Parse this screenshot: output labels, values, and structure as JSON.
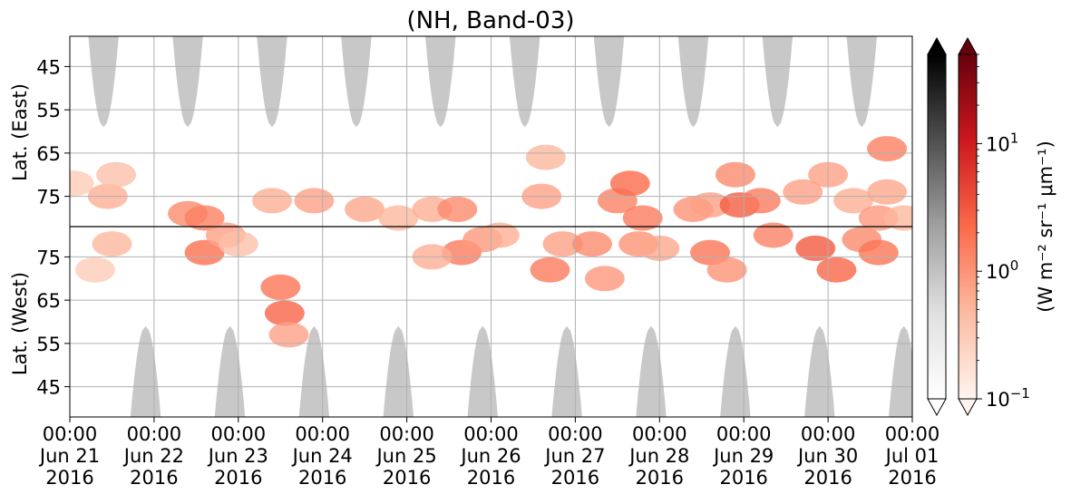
{
  "chart_data": {
    "type": "heatmap",
    "title": "(NH, Band-03)",
    "x_axis": {
      "range": [
        "2016-06-21 00:00",
        "2016-07-01 00:00"
      ],
      "ticks": [
        {
          "day": 0,
          "lines": [
            "00:00",
            "Jun 21",
            "2016"
          ]
        },
        {
          "day": 1,
          "lines": [
            "00:00",
            "Jun 22",
            "2016"
          ]
        },
        {
          "day": 2,
          "lines": [
            "00:00",
            "Jun 23",
            "2016"
          ]
        },
        {
          "day": 3,
          "lines": [
            "00:00",
            "Jun 24",
            "2016"
          ]
        },
        {
          "day": 4,
          "lines": [
            "00:00",
            "Jun 25",
            "2016"
          ]
        },
        {
          "day": 5,
          "lines": [
            "00:00",
            "Jun 26",
            "2016"
          ]
        },
        {
          "day": 6,
          "lines": [
            "00:00",
            "Jun 27",
            "2016"
          ]
        },
        {
          "day": 7,
          "lines": [
            "00:00",
            "Jun 28",
            "2016"
          ]
        },
        {
          "day": 8,
          "lines": [
            "00:00",
            "Jun 29",
            "2016"
          ]
        },
        {
          "day": 9,
          "lines": [
            "00:00",
            "Jun 30",
            "2016"
          ]
        },
        {
          "day": 10,
          "lines": [
            "00:00",
            "Jul 01",
            "2016"
          ]
        }
      ]
    },
    "y_axis": {
      "upper_label": "Lat. (East)",
      "lower_label": "Lat. (West)",
      "upper_ticks": [
        {
          "label": "45",
          "lat": 45
        },
        {
          "label": "55",
          "lat": 55
        },
        {
          "label": "65",
          "lat": 65
        },
        {
          "label": "75",
          "lat": 75
        }
      ],
      "lower_ticks": [
        {
          "label": "75",
          "lat": 75
        },
        {
          "label": "65",
          "lat": 65
        },
        {
          "label": "55",
          "lat": 55
        },
        {
          "label": "45",
          "lat": 45
        }
      ],
      "upper_range": [
        38,
        82
      ],
      "lower_range": [
        82,
        38
      ],
      "pole_line_lat": 82,
      "grid": true
    },
    "night_mask": {
      "color": "#c8c8c8",
      "east_centers_day": [
        0.4,
        1.4,
        2.4,
        3.4,
        4.4,
        5.4,
        6.4,
        7.4,
        8.4,
        9.4
      ],
      "west_centers_day": [
        0.9,
        1.9,
        2.9,
        3.9,
        4.9,
        5.9,
        6.9,
        7.9,
        8.9,
        9.9
      ],
      "max_lat": 59,
      "max_half_width_day": 0.18
    },
    "radiance_blobs": [
      {
        "day": 0.05,
        "lat": 72,
        "hemi": "east",
        "v": 0.3
      },
      {
        "day": 0.45,
        "lat": 75,
        "hemi": "east",
        "v": 0.6
      },
      {
        "day": 0.55,
        "lat": 70,
        "hemi": "east",
        "v": 0.4
      },
      {
        "day": 0.5,
        "lat": 78,
        "hemi": "west",
        "v": 0.5
      },
      {
        "day": 0.3,
        "lat": 72,
        "hemi": "west",
        "v": 0.3
      },
      {
        "day": 1.4,
        "lat": 79,
        "hemi": "east",
        "v": 1.2
      },
      {
        "day": 1.6,
        "lat": 80,
        "hemi": "east",
        "v": 1.5
      },
      {
        "day": 1.6,
        "lat": 76,
        "hemi": "west",
        "v": 2.0
      },
      {
        "day": 1.85,
        "lat": 80,
        "hemi": "west",
        "v": 0.8
      },
      {
        "day": 2.0,
        "lat": 78,
        "hemi": "west",
        "v": 0.4
      },
      {
        "day": 2.4,
        "lat": 76,
        "hemi": "east",
        "v": 0.6
      },
      {
        "day": 2.5,
        "lat": 68,
        "hemi": "west",
        "v": 1.8
      },
      {
        "day": 2.55,
        "lat": 62,
        "hemi": "west",
        "v": 2.5
      },
      {
        "day": 2.6,
        "lat": 57,
        "hemi": "west",
        "v": 0.8
      },
      {
        "day": 2.9,
        "lat": 76,
        "hemi": "east",
        "v": 0.8
      },
      {
        "day": 3.5,
        "lat": 78,
        "hemi": "east",
        "v": 0.7
      },
      {
        "day": 3.9,
        "lat": 80,
        "hemi": "east",
        "v": 0.5
      },
      {
        "day": 4.3,
        "lat": 78,
        "hemi": "east",
        "v": 0.6
      },
      {
        "day": 4.6,
        "lat": 78,
        "hemi": "east",
        "v": 1.2
      },
      {
        "day": 4.65,
        "lat": 76,
        "hemi": "west",
        "v": 1.6
      },
      {
        "day": 4.9,
        "lat": 79,
        "hemi": "west",
        "v": 0.9
      },
      {
        "day": 4.3,
        "lat": 75,
        "hemi": "west",
        "v": 0.6
      },
      {
        "day": 5.1,
        "lat": 80,
        "hemi": "west",
        "v": 0.6
      },
      {
        "day": 5.6,
        "lat": 75,
        "hemi": "east",
        "v": 0.8
      },
      {
        "day": 5.65,
        "lat": 66,
        "hemi": "east",
        "v": 0.5
      },
      {
        "day": 5.7,
        "lat": 72,
        "hemi": "west",
        "v": 1.6
      },
      {
        "day": 5.85,
        "lat": 78,
        "hemi": "west",
        "v": 0.8
      },
      {
        "day": 6.2,
        "lat": 78,
        "hemi": "west",
        "v": 1.2
      },
      {
        "day": 6.35,
        "lat": 70,
        "hemi": "west",
        "v": 0.9
      },
      {
        "day": 6.5,
        "lat": 76,
        "hemi": "east",
        "v": 1.4
      },
      {
        "day": 6.65,
        "lat": 72,
        "hemi": "east",
        "v": 2.2
      },
      {
        "day": 6.8,
        "lat": 80,
        "hemi": "east",
        "v": 1.6
      },
      {
        "day": 6.75,
        "lat": 78,
        "hemi": "west",
        "v": 1.0
      },
      {
        "day": 7.0,
        "lat": 77,
        "hemi": "west",
        "v": 0.7
      },
      {
        "day": 7.4,
        "lat": 78,
        "hemi": "east",
        "v": 1.0
      },
      {
        "day": 7.6,
        "lat": 77,
        "hemi": "east",
        "v": 0.8
      },
      {
        "day": 7.6,
        "lat": 76,
        "hemi": "west",
        "v": 1.8
      },
      {
        "day": 7.9,
        "lat": 70,
        "hemi": "east",
        "v": 1.2
      },
      {
        "day": 7.95,
        "lat": 77,
        "hemi": "east",
        "v": 2.8
      },
      {
        "day": 7.8,
        "lat": 72,
        "hemi": "west",
        "v": 1.0
      },
      {
        "day": 8.2,
        "lat": 76,
        "hemi": "east",
        "v": 1.6
      },
      {
        "day": 8.35,
        "lat": 80,
        "hemi": "west",
        "v": 1.4
      },
      {
        "day": 8.7,
        "lat": 74,
        "hemi": "east",
        "v": 0.8
      },
      {
        "day": 8.85,
        "lat": 77,
        "hemi": "west",
        "v": 3.0
      },
      {
        "day": 9.1,
        "lat": 72,
        "hemi": "west",
        "v": 2.4
      },
      {
        "day": 9.0,
        "lat": 70,
        "hemi": "east",
        "v": 0.8
      },
      {
        "day": 9.3,
        "lat": 76,
        "hemi": "east",
        "v": 0.6
      },
      {
        "day": 9.4,
        "lat": 79,
        "hemi": "west",
        "v": 1.2
      },
      {
        "day": 9.6,
        "lat": 80,
        "hemi": "east",
        "v": 0.9
      },
      {
        "day": 9.6,
        "lat": 76,
        "hemi": "west",
        "v": 1.8
      },
      {
        "day": 9.7,
        "lat": 64,
        "hemi": "east",
        "v": 1.5
      },
      {
        "day": 9.7,
        "lat": 74,
        "hemi": "east",
        "v": 0.7
      },
      {
        "day": 9.9,
        "lat": 80,
        "hemi": "east",
        "v": 0.5
      }
    ],
    "colorbars": [
      {
        "name": "gray",
        "colors": [
          "#ffffff",
          "#e0e0e0",
          "#a0a0a0",
          "#505050",
          "#000000"
        ]
      },
      {
        "name": "reds",
        "colors": [
          "#fff5f0",
          "#fcbba1",
          "#fb6a4a",
          "#cb181d",
          "#67000d"
        ]
      }
    ],
    "colorbar_scale": "log",
    "colorbar_range": [
      0.1,
      50
    ],
    "colorbar_ticks": [
      {
        "value": 0.1,
        "base": "10",
        "exp": "−1"
      },
      {
        "value": 1,
        "base": "10",
        "exp": "0"
      },
      {
        "value": 10,
        "base": "10",
        "exp": "1"
      }
    ],
    "colorbar_label": "(W m⁻² sr⁻¹ μm⁻¹)"
  }
}
